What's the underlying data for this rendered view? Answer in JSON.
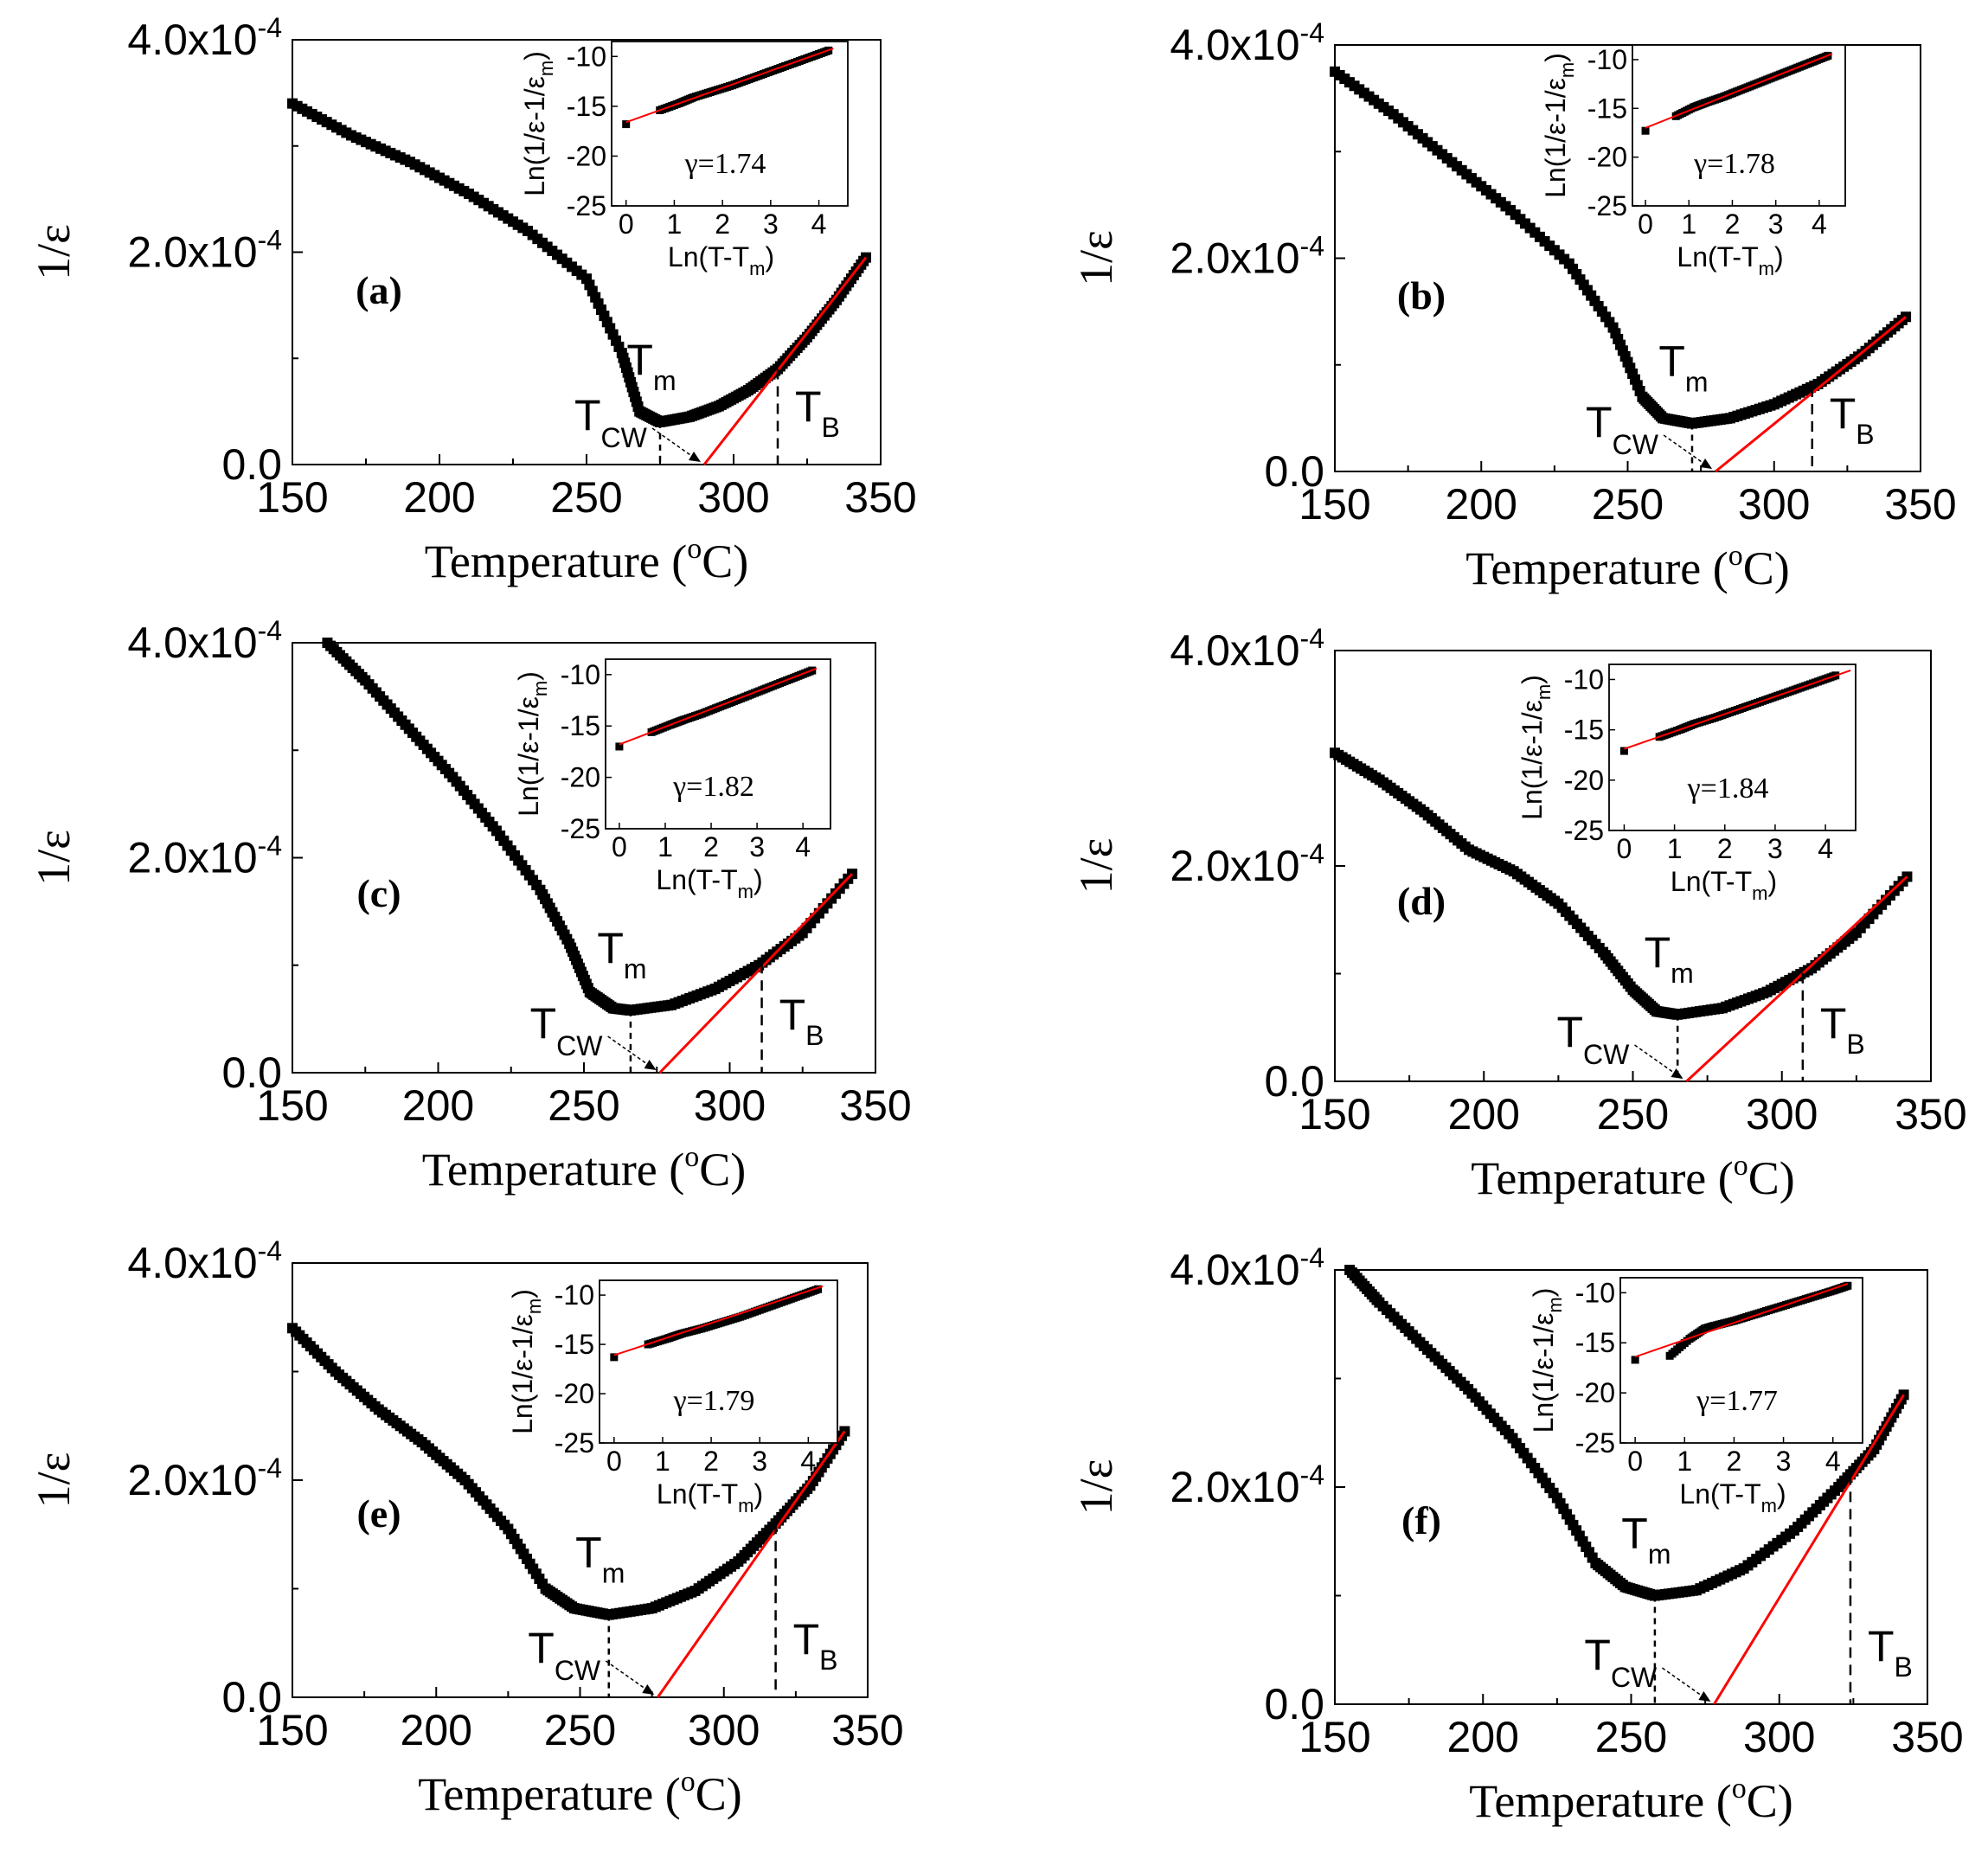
{
  "chart_data": [
    {
      "type": "scatter",
      "panel_label": "(a)",
      "xlabel": "Temperature (",
      "xlabel_sup": "o",
      "xlabel_tail": "C)",
      "ylabel": "1/ε",
      "xlim": [
        150,
        350
      ],
      "ylim": [
        0,
        0.0004
      ],
      "x_ticks": [
        "150",
        "200",
        "250",
        "300",
        "350"
      ],
      "y_ticks": [
        "0.0",
        "2.0x10",
        "4.0x10"
      ],
      "y_tick_sup": "-4",
      "T_m": 275,
      "T_cw": 290,
      "T_B": 315,
      "annotations": {
        "Tm": "T",
        "Tm_sub": "m",
        "Tcw": "T",
        "Tcw_sub": "CW",
        "TB": "T",
        "TB_sub": "B"
      },
      "series": [
        {
          "type": "scatter",
          "x": [
            150,
            170,
            190,
            210,
            230,
            250,
            262,
            268,
            275,
            285,
            295,
            305,
            315,
            325,
            335,
            345
          ],
          "y": [
            0.00034,
            0.00031,
            0.000285,
            0.000255,
            0.00022,
            0.000175,
            0.000105,
            5e-05,
            4e-05,
            4.5e-05,
            5.5e-05,
            7e-05,
            9e-05,
            0.00012,
            0.000155,
            0.000195
          ]
        },
        {
          "type": "line",
          "color": "#ff0000",
          "x": [
            290,
            345
          ],
          "y": [
            0,
            0.000195
          ]
        }
      ],
      "inset": {
        "xlabel": "Ln(T-T",
        "xlabel_sub": "m",
        "xlabel_tail": ")",
        "ylabel": "Ln(1/ε-1/ε",
        "ylabel_sub": "m",
        "ylabel_tail": ")",
        "x_ticks": [
          "0",
          "1",
          "2",
          "3",
          "4"
        ],
        "y_ticks": [
          "-10",
          "-15",
          "-20",
          "-25"
        ],
        "xlim": [
          -0.3,
          4.6
        ],
        "ylim": [
          -25,
          -8.5
        ],
        "gamma_label": "γ=1.74",
        "x": [
          0,
          0.7,
          1.1,
          1.4,
          1.8,
          2.2,
          2.6,
          3.0,
          3.4,
          3.8,
          4.2
        ],
        "y": [
          -16.8,
          -15.4,
          -14.7,
          -14.1,
          -13.5,
          -12.9,
          -12.2,
          -11.5,
          -10.8,
          -10.1,
          -9.4
        ],
        "fit": {
          "x": [
            0,
            4.3
          ],
          "y": [
            -16.6,
            -9.2
          ]
        }
      }
    },
    {
      "type": "scatter",
      "panel_label": "(b)",
      "xlabel": "Temperature (",
      "xlabel_sup": "o",
      "xlabel_tail": "C)",
      "ylabel": "1/ε",
      "xlim": [
        150,
        350
      ],
      "ylim": [
        0,
        0.0004
      ],
      "x_ticks": [
        "150",
        "200",
        "250",
        "300",
        "350"
      ],
      "y_ticks": [
        "0.0",
        "2.0x10",
        "4.0x10"
      ],
      "y_tick_sup": "-4",
      "T_m": 272,
      "T_cw": 280,
      "T_B": 313,
      "annotations": {
        "Tm": "T",
        "Tm_sub": "m",
        "Tcw": "T",
        "Tcw_sub": "CW",
        "TB": "T",
        "TB_sub": "B"
      },
      "series": [
        {
          "type": "scatter",
          "x": [
            150,
            170,
            190,
            210,
            230,
            245,
            255,
            262,
            272,
            285,
            300,
            315,
            330,
            345
          ],
          "y": [
            0.000375,
            0.000335,
            0.00029,
            0.000245,
            0.000195,
            0.000135,
            7e-05,
            5e-05,
            4.5e-05,
            5e-05,
            6.3e-05,
            8.2e-05,
            0.00011,
            0.000145
          ]
        },
        {
          "type": "line",
          "color": "#ff0000",
          "x": [
            280,
            345
          ],
          "y": [
            0,
            0.000145
          ]
        }
      ],
      "inset": {
        "xlabel": "Ln(T-T",
        "xlabel_sub": "m",
        "xlabel_tail": ")",
        "ylabel": "Ln(1/ε-1/ε",
        "ylabel_sub": "m",
        "ylabel_tail": ")",
        "x_ticks": [
          "0",
          "1",
          "2",
          "3",
          "4"
        ],
        "y_ticks": [
          "-10",
          "-15",
          "-20",
          "-25"
        ],
        "xlim": [
          -0.3,
          4.6
        ],
        "ylim": [
          -25,
          -8.5
        ],
        "gamma_label": "γ=1.78",
        "x": [
          0,
          0.7,
          1.1,
          1.4,
          1.8,
          2.2,
          2.6,
          3.0,
          3.4,
          3.8,
          4.2
        ],
        "y": [
          -17.3,
          -15.8,
          -14.9,
          -14.4,
          -13.8,
          -13.1,
          -12.4,
          -11.7,
          -11.0,
          -10.3,
          -9.6
        ],
        "fit": {
          "x": [
            0,
            4.3
          ],
          "y": [
            -17.0,
            -9.4
          ]
        }
      }
    },
    {
      "type": "scatter",
      "panel_label": "(c)",
      "xlabel": "Temperature (",
      "xlabel_sup": "o",
      "xlabel_tail": "C)",
      "ylabel": "1/ε",
      "xlim": [
        150,
        350
      ],
      "ylim": [
        0,
        0.0004
      ],
      "x_ticks": [
        "150",
        "200",
        "250",
        "300",
        "350"
      ],
      "y_ticks": [
        "0.0",
        "2.0x10",
        "4.0x10"
      ],
      "y_tick_sup": "-4",
      "T_m": 266,
      "T_cw": 276,
      "T_B": 311,
      "annotations": {
        "Tm": "T",
        "Tm_sub": "m",
        "Tcw": "T",
        "Tcw_sub": "CW",
        "TB": "T",
        "TB_sub": "B"
      },
      "series": [
        {
          "type": "scatter",
          "x": [
            162,
            175,
            190,
            205,
            220,
            235,
            245,
            252,
            260,
            266,
            280,
            295,
            310,
            325,
            342
          ],
          "y": [
            0.0004,
            0.000365,
            0.00032,
            0.000275,
            0.000225,
            0.00017,
            0.00012,
            7.5e-05,
            6e-05,
            5.8e-05,
            6.3e-05,
            7.8e-05,
            0.0001,
            0.00013,
            0.000185
          ]
        },
        {
          "type": "line",
          "color": "#ff0000",
          "x": [
            276,
            342
          ],
          "y": [
            0,
            0.000185
          ]
        }
      ],
      "inset": {
        "xlabel": "Ln(T-T",
        "xlabel_sub": "m",
        "xlabel_tail": ")",
        "ylabel": "Ln(1/ε-1/ε",
        "ylabel_sub": "m",
        "ylabel_tail": ")",
        "x_ticks": [
          "0",
          "1",
          "2",
          "3",
          "4"
        ],
        "y_ticks": [
          "-10",
          "-15",
          "-20",
          "-25"
        ],
        "xlim": [
          -0.3,
          4.6
        ],
        "ylim": [
          -25,
          -8.5
        ],
        "gamma_label": "γ=1.82",
        "x": [
          0,
          0.7,
          1.1,
          1.4,
          1.8,
          2.2,
          2.6,
          3.0,
          3.4,
          3.8,
          4.2
        ],
        "y": [
          -17.0,
          -15.6,
          -14.9,
          -14.4,
          -13.8,
          -13.1,
          -12.4,
          -11.7,
          -11.0,
          -10.3,
          -9.6
        ],
        "fit": {
          "x": [
            0,
            4.3
          ],
          "y": [
            -16.8,
            -9.4
          ]
        }
      }
    },
    {
      "type": "scatter",
      "panel_label": "(d)",
      "xlabel": "Temperature (",
      "xlabel_sup": "o",
      "xlabel_tail": "C)",
      "ylabel": "1/ε",
      "xlim": [
        150,
        350
      ],
      "ylim": [
        0,
        0.0004
      ],
      "x_ticks": [
        "150",
        "200",
        "250",
        "300",
        "350"
      ],
      "y_ticks": [
        "0.0",
        "2.0x10",
        "4.0x10"
      ],
      "y_tick_sup": "-4",
      "T_m": 265,
      "T_cw": 268,
      "T_B": 307,
      "annotations": {
        "Tm": "T",
        "Tm_sub": "m",
        "Tcw": "T",
        "Tcw_sub": "CW",
        "TB": "T",
        "TB_sub": "B"
      },
      "series": [
        {
          "type": "scatter",
          "x": [
            150,
            165,
            180,
            195,
            210,
            225,
            240,
            250,
            258,
            265,
            280,
            295,
            310,
            325,
            342
          ],
          "y": [
            0.000305,
            0.00028,
            0.00025,
            0.000215,
            0.000195,
            0.000165,
            0.00012,
            8.5e-05,
            6.5e-05,
            6.2e-05,
            6.8e-05,
            8.3e-05,
            0.000105,
            0.000138,
            0.00019
          ]
        },
        {
          "type": "line",
          "color": "#ff0000",
          "x": [
            268,
            342
          ],
          "y": [
            0,
            0.00019
          ]
        }
      ],
      "inset": {
        "xlabel": "Ln(T-T",
        "xlabel_sub": "m",
        "xlabel_tail": ")",
        "ylabel": "Ln(1/ε-1/ε",
        "ylabel_sub": "m",
        "ylabel_tail": ")",
        "x_ticks": [
          "0",
          "1",
          "2",
          "3",
          "4"
        ],
        "y_ticks": [
          "-10",
          "-15",
          "-20",
          "-25"
        ],
        "xlim": [
          -0.3,
          4.6
        ],
        "ylim": [
          -25,
          -8.5
        ],
        "gamma_label": "γ=1.84",
        "x": [
          0,
          0.7,
          1.1,
          1.4,
          1.8,
          2.2,
          2.6,
          3.0,
          3.4,
          3.8,
          4.2
        ],
        "y": [
          -17.1,
          -15.7,
          -15.0,
          -14.4,
          -13.8,
          -13.1,
          -12.4,
          -11.7,
          -11.0,
          -10.3,
          -9.6
        ],
        "fit": {
          "x": [
            0,
            4.5
          ],
          "y": [
            -16.9,
            -9.1
          ]
        }
      }
    },
    {
      "type": "scatter",
      "panel_label": "(e)",
      "xlabel": "Temperature (",
      "xlabel_sup": "o",
      "xlabel_tail": "C)",
      "ylabel": "1/ε",
      "xlim": [
        150,
        350
      ],
      "ylim": [
        0,
        0.0004
      ],
      "x_ticks": [
        "150",
        "200",
        "250",
        "300",
        "350"
      ],
      "y_ticks": [
        "0.0",
        "2.0x10",
        "4.0x10"
      ],
      "y_tick_sup": "-4",
      "T_m": 260,
      "T_cw": 277,
      "T_B": 318,
      "annotations": {
        "Tm": "T",
        "Tm_sub": "m",
        "Tcw": "T",
        "Tcw_sub": "CW",
        "TB": "T",
        "TB_sub": "B"
      },
      "series": [
        {
          "type": "scatter",
          "x": [
            150,
            165,
            180,
            195,
            210,
            225,
            238,
            248,
            260,
            275,
            290,
            305,
            318,
            330,
            342
          ],
          "y": [
            0.00034,
            0.0003,
            0.000265,
            0.000235,
            0.0002,
            0.000155,
            0.0001,
            8.2e-05,
            7.6e-05,
            8.2e-05,
            9.8e-05,
            0.000125,
            0.00016,
            0.000195,
            0.000245
          ]
        },
        {
          "type": "line",
          "color": "#ff0000",
          "x": [
            277,
            342
          ],
          "y": [
            0,
            0.000245
          ]
        }
      ],
      "inset": {
        "xlabel": "Ln(T-T",
        "xlabel_sub": "m",
        "xlabel_tail": ")",
        "ylabel": "Ln(1/ε-1/ε",
        "ylabel_sub": "m",
        "ylabel_tail": ")",
        "x_ticks": [
          "0",
          "1",
          "2",
          "3",
          "4"
        ],
        "y_ticks": [
          "-10",
          "-15",
          "-20",
          "-25"
        ],
        "xlim": [
          -0.3,
          4.6
        ],
        "ylim": [
          -25,
          -8.5
        ],
        "gamma_label": "γ=1.79",
        "x": [
          0,
          0.7,
          1.1,
          1.4,
          1.8,
          2.2,
          2.6,
          3.0,
          3.4,
          3.8,
          4.2
        ],
        "y": [
          -16.3,
          -15.0,
          -14.4,
          -13.9,
          -13.4,
          -12.8,
          -12.2,
          -11.5,
          -10.8,
          -10.1,
          -9.4
        ],
        "fit": {
          "x": [
            0,
            4.3
          ],
          "y": [
            -16.1,
            -9.1
          ]
        }
      }
    },
    {
      "type": "scatter",
      "panel_label": "(f)",
      "xlabel": "Temperature (",
      "xlabel_sup": "o",
      "xlabel_tail": "C)",
      "ylabel": "1/ε",
      "xlim": [
        150,
        350
      ],
      "ylim": [
        0,
        0.0004
      ],
      "x_ticks": [
        "150",
        "200",
        "250",
        "300",
        "350"
      ],
      "y_ticks": [
        "0.0",
        "2.0x10",
        "4.0x10"
      ],
      "y_tick_sup": "-4",
      "T_m": 258,
      "T_cw": 278,
      "T_B": 324,
      "annotations": {
        "Tm": "T",
        "Tm_sub": "m",
        "Tcw": "T",
        "Tcw_sub": "CW",
        "TB": "T",
        "TB_sub": "B"
      },
      "series": [
        {
          "type": "scatter",
          "x": [
            155,
            165,
            180,
            195,
            210,
            225,
            238,
            248,
            258,
            272,
            288,
            305,
            320,
            332,
            342
          ],
          "y": [
            0.0004,
            0.00037,
            0.00033,
            0.00029,
            0.000245,
            0.00019,
            0.00013,
            0.000108,
            0.0001,
            0.000105,
            0.000125,
            0.00016,
            0.0002,
            0.000235,
            0.000285
          ]
        },
        {
          "type": "line",
          "color": "#ff0000",
          "x": [
            278,
            342
          ],
          "y": [
            0,
            0.000285
          ]
        }
      ],
      "inset": {
        "xlabel": "Ln(T-T",
        "xlabel_sub": "m",
        "xlabel_tail": ")",
        "ylabel": "Ln(1/ε-1/ε",
        "ylabel_sub": "m",
        "ylabel_tail": ")",
        "x_ticks": [
          "0",
          "1",
          "2",
          "3",
          "4"
        ],
        "y_ticks": [
          "-10",
          "-15",
          "-20",
          "-25"
        ],
        "xlim": [
          -0.3,
          4.6
        ],
        "ylim": [
          -25,
          -8.5
        ],
        "gamma_label": "γ=1.77",
        "x": [
          0,
          0.7,
          1.1,
          1.4,
          1.6,
          2.0,
          2.4,
          2.8,
          3.2,
          3.6,
          4.0,
          4.3
        ],
        "y": [
          -16.7,
          -16.3,
          -14.6,
          -13.6,
          -13.3,
          -12.8,
          -12.2,
          -11.6,
          -11.0,
          -10.4,
          -9.8,
          -9.3
        ],
        "fit": {
          "x": [
            0,
            4.3
          ],
          "y": [
            -16.4,
            -9.1
          ]
        }
      }
    }
  ]
}
